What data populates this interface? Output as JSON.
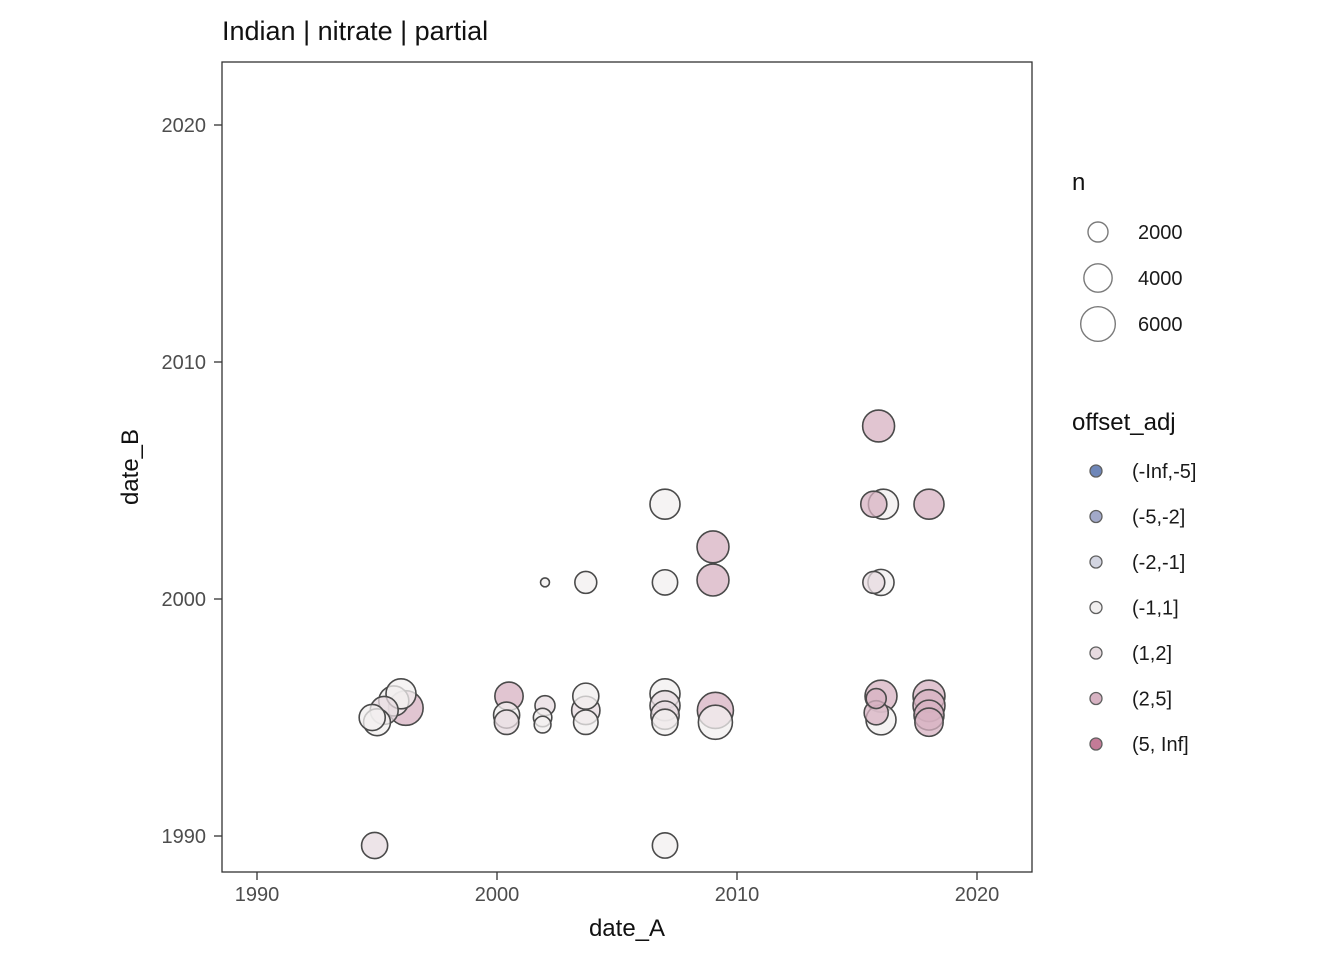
{
  "title": "Indian | nitrate | partial",
  "chart_data": {
    "type": "scatter",
    "title": "Indian | nitrate | partial",
    "xlabel": "date_A",
    "ylabel": "date_B",
    "xlim": [
      1988.5,
      2022.3
    ],
    "ylim": [
      1988.4,
      2022.5
    ],
    "x_ticks": [
      "1990",
      "2000",
      "2010",
      "2020"
    ],
    "y_ticks": [
      "1990",
      "2000",
      "2010",
      "2020"
    ],
    "grid": false,
    "legend_position": "right",
    "panel_background": "#ffffff",
    "point_stroke": "#4a4a4a",
    "size_legend": {
      "title": "n",
      "values": [
        "2000",
        "4000",
        "6000"
      ],
      "numeric": [
        2000,
        4000,
        6000
      ]
    },
    "color_legend": {
      "title": "offset_adj",
      "entries": [
        {
          "label": "(-Inf,-5]",
          "color": "#6e86b8"
        },
        {
          "label": "(-5,-2]",
          "color": "#a2a9c9"
        },
        {
          "label": "(-2,-1]",
          "color": "#d3d5e1"
        },
        {
          "label": "(-1,1]",
          "color": "#f1efef"
        },
        {
          "label": "(1,2]",
          "color": "#e7dbe0"
        },
        {
          "label": "(2,5]",
          "color": "#d7b2c2"
        },
        {
          "label": "(5, Inf]",
          "color": "#c47b97"
        }
      ]
    },
    "points": [
      {
        "date_A": 1994.8,
        "date_B": 1995.0,
        "n": 3400,
        "offset_adj": "(-1,1]"
      },
      {
        "date_A": 1995.0,
        "date_B": 1994.8,
        "n": 3600,
        "offset_adj": "(-1,1]"
      },
      {
        "date_A": 1995.3,
        "date_B": 1995.3,
        "n": 3900,
        "offset_adj": "(1,2]"
      },
      {
        "date_A": 1995.7,
        "date_B": 1995.7,
        "n": 4500,
        "offset_adj": "(-1,1]"
      },
      {
        "date_A": 1996.0,
        "date_B": 1996.0,
        "n": 4500,
        "offset_adj": "(-1,1]"
      },
      {
        "date_A": 1996.2,
        "date_B": 1995.4,
        "n": 6000,
        "offset_adj": "(2,5]"
      },
      {
        "date_A": 1994.9,
        "date_B": 1989.6,
        "n": 3400,
        "offset_adj": "(1,2]"
      },
      {
        "date_A": 2000.5,
        "date_B": 1995.9,
        "n": 4000,
        "offset_adj": "(2,5]"
      },
      {
        "date_A": 2000.4,
        "date_B": 1995.1,
        "n": 3400,
        "offset_adj": "(-1,1]"
      },
      {
        "date_A": 2000.4,
        "date_B": 1994.8,
        "n": 3000,
        "offset_adj": "(1,2]"
      },
      {
        "date_A": 2002.0,
        "date_B": 1995.5,
        "n": 2000,
        "offset_adj": "(1,2]"
      },
      {
        "date_A": 2001.9,
        "date_B": 1995.0,
        "n": 1700,
        "offset_adj": "(-1,1]"
      },
      {
        "date_A": 2001.9,
        "date_B": 1994.7,
        "n": 1400,
        "offset_adj": "(-1,1]"
      },
      {
        "date_A": 2002.0,
        "date_B": 2000.7,
        "n": 400,
        "offset_adj": "(-1,1]"
      },
      {
        "date_A": 2003.7,
        "date_B": 2000.7,
        "n": 2400,
        "offset_adj": "(-1,1]"
      },
      {
        "date_A": 2003.7,
        "date_B": 1995.9,
        "n": 3400,
        "offset_adj": "(-1,1]"
      },
      {
        "date_A": 2003.7,
        "date_B": 1995.3,
        "n": 4000,
        "offset_adj": "(1,2]"
      },
      {
        "date_A": 2003.7,
        "date_B": 1994.8,
        "n": 3000,
        "offset_adj": "(-1,1]"
      },
      {
        "date_A": 2007.0,
        "date_B": 2004.0,
        "n": 4500,
        "offset_adj": "(-1,1]"
      },
      {
        "date_A": 2007.0,
        "date_B": 2000.7,
        "n": 3200,
        "offset_adj": "(-1,1]"
      },
      {
        "date_A": 2007.0,
        "date_B": 1996.0,
        "n": 4500,
        "offset_adj": "(-1,1]"
      },
      {
        "date_A": 2007.0,
        "date_B": 1995.5,
        "n": 4500,
        "offset_adj": "(1,2]"
      },
      {
        "date_A": 2007.0,
        "date_B": 1995.1,
        "n": 4000,
        "offset_adj": "(1,2]"
      },
      {
        "date_A": 2007.0,
        "date_B": 1994.8,
        "n": 3400,
        "offset_adj": "(-1,1]"
      },
      {
        "date_A": 2007.0,
        "date_B": 1989.6,
        "n": 3200,
        "offset_adj": "(-1,1]"
      },
      {
        "date_A": 2009.0,
        "date_B": 2002.2,
        "n": 5100,
        "offset_adj": "(2,5]"
      },
      {
        "date_A": 2009.0,
        "date_B": 2000.8,
        "n": 5100,
        "offset_adj": "(2,5]"
      },
      {
        "date_A": 2009.1,
        "date_B": 1995.3,
        "n": 6500,
        "offset_adj": "(2,5]"
      },
      {
        "date_A": 2009.1,
        "date_B": 1994.8,
        "n": 5800,
        "offset_adj": "(-1,1]"
      },
      {
        "date_A": 2015.9,
        "date_B": 2007.3,
        "n": 5100,
        "offset_adj": "(2,5]"
      },
      {
        "date_A": 2015.7,
        "date_B": 2004.0,
        "n": 3400,
        "offset_adj": "(2,5]"
      },
      {
        "date_A": 2016.1,
        "date_B": 2004.0,
        "n": 4500,
        "offset_adj": "(-1,1]"
      },
      {
        "date_A": 2015.7,
        "date_B": 2000.7,
        "n": 2400,
        "offset_adj": "(1,2]"
      },
      {
        "date_A": 2016.0,
        "date_B": 2000.7,
        "n": 3400,
        "offset_adj": "(-1,1]"
      },
      {
        "date_A": 2016.0,
        "date_B": 1995.9,
        "n": 5100,
        "offset_adj": "(2,5]"
      },
      {
        "date_A": 2015.8,
        "date_B": 1995.8,
        "n": 2000,
        "offset_adj": "(2,5]"
      },
      {
        "date_A": 2015.8,
        "date_B": 1995.2,
        "n": 2900,
        "offset_adj": "(2,5]"
      },
      {
        "date_A": 2016.0,
        "date_B": 1994.9,
        "n": 4500,
        "offset_adj": "(-1,1]"
      },
      {
        "date_A": 2018.0,
        "date_B": 2004.0,
        "n": 4500,
        "offset_adj": "(2,5]"
      },
      {
        "date_A": 2018.0,
        "date_B": 1995.9,
        "n": 5100,
        "offset_adj": "(2,5]"
      },
      {
        "date_A": 2018.0,
        "date_B": 1995.5,
        "n": 5100,
        "offset_adj": "(2,5]"
      },
      {
        "date_A": 2018.0,
        "date_B": 1995.1,
        "n": 4500,
        "offset_adj": "(2,5]"
      },
      {
        "date_A": 2018.0,
        "date_B": 1994.8,
        "n": 4000,
        "offset_adj": "(2,5]"
      }
    ]
  }
}
